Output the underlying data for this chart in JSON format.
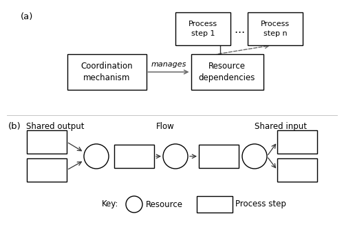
{
  "bg_color": "#ffffff",
  "text_color": "#000000",
  "box_edge_color": "#000000",
  "arrow_color": "#666666",
  "label_a": "(a)",
  "label_b": "(b)",
  "coord_mech_text": "Coordination\nmechanism",
  "resource_dep_text": "Resource\ndependencies",
  "process_step1_text": "Process\nstep 1",
  "process_stepn_text": "Process\nstep n",
  "manages_text": "manages",
  "ellipsis_text": "…",
  "shared_output_text": "Shared output",
  "shared_input_text": "Shared input",
  "flow_text": "Flow",
  "key_resource_text": "Resource",
  "key_process_text": "Process step"
}
